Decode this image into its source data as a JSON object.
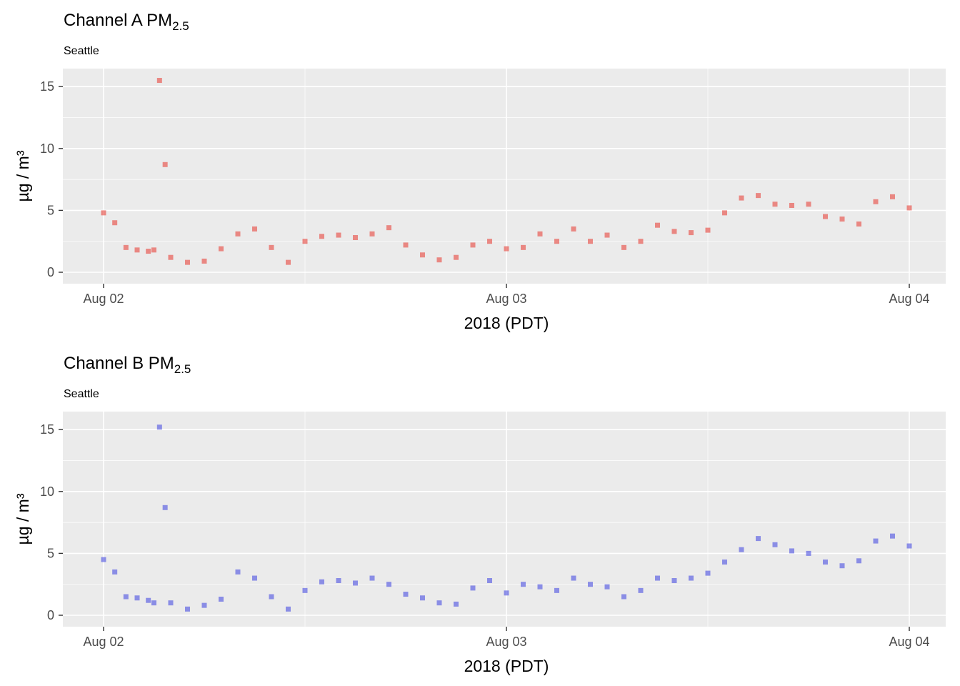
{
  "chart_data": [
    {
      "type": "scatter",
      "title": "Channel A PM",
      "title_subscript": "2.5",
      "subtitle": "Seattle",
      "xlabel": "2018 (PDT)",
      "ylabel": "µg / m³",
      "x_ticks": [
        "Aug 02",
        "Aug 03",
        "Aug 04"
      ],
      "y_ticks": [
        0,
        5,
        10,
        15
      ],
      "xlim": [
        "2018-08-02 00:00",
        "2018-08-04 00:00"
      ],
      "ylim": [
        0,
        15.7
      ],
      "grid": true,
      "point_color": "#e8453c",
      "point_opacity": 0.6,
      "series": [
        {
          "x": [
            "2018-08-02 00:00",
            "2018-08-02 00:40",
            "2018-08-02 01:20",
            "2018-08-02 02:00",
            "2018-08-02 02:40",
            "2018-08-02 03:00",
            "2018-08-02 03:20",
            "2018-08-02 03:40",
            "2018-08-02 04:00",
            "2018-08-02 05:00",
            "2018-08-02 06:00",
            "2018-08-02 07:00",
            "2018-08-02 08:00",
            "2018-08-02 09:00",
            "2018-08-02 10:00",
            "2018-08-02 11:00",
            "2018-08-02 12:00",
            "2018-08-02 13:00",
            "2018-08-02 14:00",
            "2018-08-02 15:00",
            "2018-08-02 16:00",
            "2018-08-02 17:00",
            "2018-08-02 18:00",
            "2018-08-02 19:00",
            "2018-08-02 20:00",
            "2018-08-02 21:00",
            "2018-08-02 22:00",
            "2018-08-02 23:00",
            "2018-08-03 00:00",
            "2018-08-03 01:00",
            "2018-08-03 02:00",
            "2018-08-03 03:00",
            "2018-08-03 04:00",
            "2018-08-03 05:00",
            "2018-08-03 06:00",
            "2018-08-03 07:00",
            "2018-08-03 08:00",
            "2018-08-03 09:00",
            "2018-08-03 10:00",
            "2018-08-03 11:00",
            "2018-08-03 12:00",
            "2018-08-03 13:00",
            "2018-08-03 14:00",
            "2018-08-03 15:00",
            "2018-08-03 16:00",
            "2018-08-03 17:00",
            "2018-08-03 18:00",
            "2018-08-03 19:00",
            "2018-08-03 20:00",
            "2018-08-03 21:00",
            "2018-08-03 22:00",
            "2018-08-03 23:00",
            "2018-08-04 00:00"
          ],
          "y": [
            4.8,
            4.0,
            2.0,
            1.8,
            1.7,
            1.8,
            15.5,
            8.7,
            1.2,
            0.8,
            0.9,
            1.9,
            3.1,
            3.5,
            2.0,
            0.8,
            2.5,
            2.9,
            3.0,
            2.8,
            3.1,
            3.6,
            2.2,
            1.4,
            1.0,
            1.2,
            2.2,
            2.5,
            1.9,
            2.0,
            3.1,
            2.5,
            3.5,
            2.5,
            3.0,
            2.0,
            2.5,
            3.8,
            3.3,
            3.2,
            3.4,
            4.8,
            6.0,
            6.2,
            5.5,
            5.4,
            5.5,
            4.5,
            4.3,
            3.9,
            5.7,
            6.1,
            5.2
          ]
        }
      ]
    },
    {
      "type": "scatter",
      "title": "Channel B PM",
      "title_subscript": "2.5",
      "subtitle": "Seattle",
      "xlabel": "2018 (PDT)",
      "ylabel": "µg / m³",
      "x_ticks": [
        "Aug 02",
        "Aug 03",
        "Aug 04"
      ],
      "y_ticks": [
        0,
        5,
        10,
        15
      ],
      "xlim": [
        "2018-08-02 00:00",
        "2018-08-04 00:00"
      ],
      "ylim": [
        0,
        15.7
      ],
      "grid": true,
      "point_color": "#3b3fe0",
      "point_opacity": 0.55,
      "series": [
        {
          "x": [
            "2018-08-02 00:00",
            "2018-08-02 00:40",
            "2018-08-02 01:20",
            "2018-08-02 02:00",
            "2018-08-02 02:40",
            "2018-08-02 03:00",
            "2018-08-02 03:20",
            "2018-08-02 03:40",
            "2018-08-02 04:00",
            "2018-08-02 05:00",
            "2018-08-02 06:00",
            "2018-08-02 07:00",
            "2018-08-02 08:00",
            "2018-08-02 09:00",
            "2018-08-02 10:00",
            "2018-08-02 11:00",
            "2018-08-02 12:00",
            "2018-08-02 13:00",
            "2018-08-02 14:00",
            "2018-08-02 15:00",
            "2018-08-02 16:00",
            "2018-08-02 17:00",
            "2018-08-02 18:00",
            "2018-08-02 19:00",
            "2018-08-02 20:00",
            "2018-08-02 21:00",
            "2018-08-02 22:00",
            "2018-08-02 23:00",
            "2018-08-03 00:00",
            "2018-08-03 01:00",
            "2018-08-03 02:00",
            "2018-08-03 03:00",
            "2018-08-03 04:00",
            "2018-08-03 05:00",
            "2018-08-03 06:00",
            "2018-08-03 07:00",
            "2018-08-03 08:00",
            "2018-08-03 09:00",
            "2018-08-03 10:00",
            "2018-08-03 11:00",
            "2018-08-03 12:00",
            "2018-08-03 13:00",
            "2018-08-03 14:00",
            "2018-08-03 15:00",
            "2018-08-03 16:00",
            "2018-08-03 17:00",
            "2018-08-03 18:00",
            "2018-08-03 19:00",
            "2018-08-03 20:00",
            "2018-08-03 21:00",
            "2018-08-03 22:00",
            "2018-08-03 23:00",
            "2018-08-04 00:00"
          ],
          "y": [
            4.5,
            3.5,
            1.5,
            1.4,
            1.2,
            1.0,
            15.2,
            8.7,
            1.0,
            0.5,
            0.8,
            1.3,
            3.5,
            3.0,
            1.5,
            0.5,
            2.0,
            2.7,
            2.8,
            2.6,
            3.0,
            2.5,
            1.7,
            1.4,
            1.0,
            0.9,
            2.2,
            2.8,
            1.8,
            2.5,
            2.3,
            2.0,
            3.0,
            2.5,
            2.3,
            1.5,
            2.0,
            3.0,
            2.8,
            3.0,
            3.4,
            4.3,
            5.3,
            6.2,
            5.7,
            5.2,
            5.0,
            4.3,
            4.0,
            4.4,
            6.0,
            6.4,
            5.6
          ]
        }
      ]
    }
  ]
}
